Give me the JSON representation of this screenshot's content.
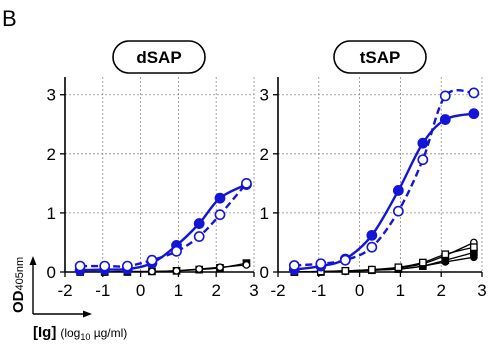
{
  "figure": {
    "panel_letter": "B",
    "y_axis_label_main": "OD",
    "y_axis_label_sub": "405nm",
    "x_axis_label_main": "[Ig]",
    "x_axis_label_open": "(log",
    "x_axis_label_sub": "10",
    "x_axis_label_rest": " µg/ml)"
  },
  "colors": {
    "blue": "#1515d6",
    "black": "#000000",
    "grid": "#8a8a8a"
  },
  "chart_data": [
    {
      "type": "scatter",
      "title": "dSAP",
      "xlim": [
        -2,
        3
      ],
      "ylim": [
        0,
        3.3
      ],
      "xticks": [
        "-2",
        "-1",
        "0",
        "1",
        "2",
        "3"
      ],
      "yticks": [
        "0",
        "1",
        "2",
        "3"
      ],
      "grid": true,
      "series": [
        {
          "color": "#1515d6",
          "marker": "filled-circle",
          "line": "solid",
          "x": [
            -1.6,
            -0.95,
            -0.35,
            0.3,
            0.95,
            1.55,
            2.1,
            2.8
          ],
          "y": [
            0.03,
            0.04,
            0.05,
            0.15,
            0.45,
            0.82,
            1.25,
            1.48
          ]
        },
        {
          "color": "#1515d6",
          "marker": "open-circle",
          "line": "dashed",
          "x": [
            -1.6,
            -0.95,
            -0.35,
            0.3,
            0.95,
            1.55,
            2.1,
            2.8
          ],
          "y": [
            0.1,
            0.1,
            0.1,
            0.2,
            0.35,
            0.6,
            0.97,
            1.5
          ]
        },
        {
          "color": "#000000",
          "marker": "filled-square",
          "line": "solid",
          "x": [
            -1.6,
            -0.95,
            -0.35,
            0.3,
            0.95,
            1.55,
            2.1,
            2.8
          ],
          "y": [
            0.0,
            0.0,
            0.0,
            0.01,
            0.02,
            0.04,
            0.07,
            0.15
          ]
        },
        {
          "color": "#000000",
          "marker": "open-circle",
          "line": "solid",
          "x": [
            -1.6,
            -0.95,
            -0.35,
            0.3,
            0.95,
            1.55,
            2.1,
            2.8
          ],
          "y": [
            0.0,
            0.0,
            0.01,
            0.01,
            0.02,
            0.05,
            0.08,
            0.12
          ]
        }
      ]
    },
    {
      "type": "scatter",
      "title": "tSAP",
      "xlim": [
        -2,
        3
      ],
      "ylim": [
        0,
        3.3
      ],
      "xticks": [
        "-2",
        "-1",
        "0",
        "1",
        "2",
        "3"
      ],
      "yticks": [
        "0",
        "1",
        "2",
        "3"
      ],
      "grid": true,
      "series": [
        {
          "color": "#1515d6",
          "marker": "filled-circle",
          "line": "solid",
          "x": [
            -1.6,
            -0.95,
            -0.35,
            0.3,
            0.95,
            1.55,
            2.1,
            2.8
          ],
          "y": [
            0.04,
            0.1,
            0.22,
            0.62,
            1.38,
            2.18,
            2.58,
            2.68
          ]
        },
        {
          "color": "#1515d6",
          "marker": "open-circle",
          "line": "dashed",
          "x": [
            -1.6,
            -0.95,
            -0.35,
            0.3,
            0.95,
            1.55,
            2.1,
            2.8
          ],
          "y": [
            0.11,
            0.14,
            0.2,
            0.42,
            1.03,
            1.9,
            2.98,
            3.03
          ]
        },
        {
          "color": "#000000",
          "marker": "filled-square",
          "line": "solid",
          "x": [
            -1.6,
            -0.95,
            -0.35,
            0.3,
            0.95,
            1.55,
            2.1,
            2.8
          ],
          "y": [
            0.0,
            0.0,
            0.02,
            0.03,
            0.05,
            0.1,
            0.2,
            0.33
          ]
        },
        {
          "color": "#000000",
          "marker": "open-circle",
          "line": "solid",
          "x": [
            -1.6,
            -0.95,
            -0.35,
            0.3,
            0.95,
            1.55,
            2.1,
            2.8
          ],
          "y": [
            0.0,
            0.01,
            0.02,
            0.04,
            0.07,
            0.14,
            0.28,
            0.5
          ]
        },
        {
          "color": "#000000",
          "marker": "filled-circle",
          "line": "solid",
          "x": [
            -1.6,
            -0.95,
            -0.35,
            0.3,
            0.95,
            1.55,
            2.1,
            2.8
          ],
          "y": [
            0.0,
            0.0,
            0.01,
            0.03,
            0.05,
            0.1,
            0.17,
            0.25
          ]
        },
        {
          "color": "#000000",
          "marker": "open-square",
          "line": "solid",
          "x": [
            -1.6,
            -0.95,
            -0.35,
            0.3,
            0.95,
            1.55,
            2.1,
            2.8
          ],
          "y": [
            0.0,
            0.01,
            0.02,
            0.04,
            0.08,
            0.16,
            0.3,
            0.42
          ]
        }
      ]
    }
  ]
}
